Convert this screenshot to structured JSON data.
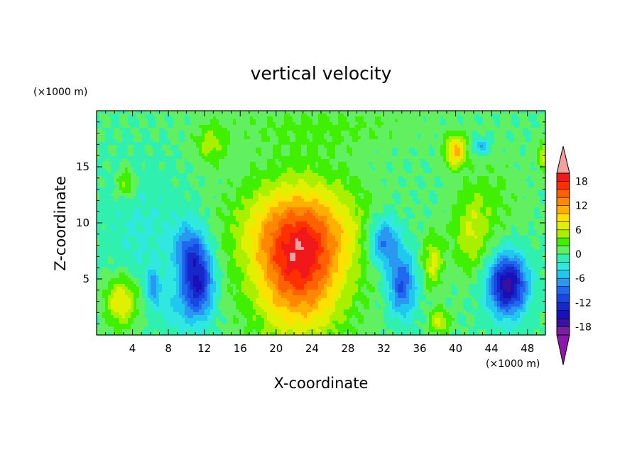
{
  "chart_data": {
    "type": "heatmap",
    "title": "vertical velocity",
    "xlabel": "X-coordinate",
    "ylabel": "Z-coordinate",
    "x_unit": "(×1000 m)",
    "y_unit": "(×1000 m)",
    "xlim": [
      0,
      50
    ],
    "ylim": [
      0,
      20
    ],
    "x_ticks": [
      4,
      8,
      12,
      16,
      20,
      24,
      28,
      32,
      36,
      40,
      44,
      48
    ],
    "y_ticks": [
      5,
      10,
      15
    ],
    "colorbar": {
      "levels": [
        -20,
        -18,
        -16,
        -14,
        -12,
        -10,
        -8,
        -6,
        -4,
        -2,
        0,
        2,
        4,
        6,
        8,
        10,
        12,
        14,
        16,
        18,
        20
      ],
      "tick_labels": [
        "18",
        "12",
        "6",
        "0",
        "-6",
        "-12",
        "-18"
      ],
      "tick_values": [
        18,
        12,
        6,
        0,
        -6,
        -12,
        -18
      ],
      "colors": [
        "#7a1fa0",
        "#3a10a0",
        "#1a10b8",
        "#1828c8",
        "#1848e0",
        "#2068f0",
        "#2a98f0",
        "#20c8f0",
        "#30e8e0",
        "#30f0b0",
        "#60f060",
        "#40f000",
        "#a8f000",
        "#e0f000",
        "#ffe000",
        "#ffb000",
        "#ff8800",
        "#ff6000",
        "#ff3000",
        "#f01818"
      ],
      "under_color": "#8a18a8",
      "over_color": "#f4a0a0"
    },
    "features": [
      {
        "x": 22.7,
        "z": 6.3,
        "w": 0.9,
        "sx": 4.2,
        "sz": 4.3
      },
      {
        "x": 22.5,
        "z": 9.5,
        "w": 0.25,
        "sx": 5.0,
        "sz": 3.0
      },
      {
        "x": 11.3,
        "z": 4.6,
        "w": -0.72,
        "sx": 1.3,
        "sz": 2.3
      },
      {
        "x": 10.3,
        "z": 7.8,
        "w": -0.35,
        "sx": 1.3,
        "sz": 1.8
      },
      {
        "x": 34.0,
        "z": 4.5,
        "w": -0.55,
        "sx": 1.1,
        "sz": 2.0
      },
      {
        "x": 32.0,
        "z": 8.3,
        "w": -0.5,
        "sx": 1.2,
        "sz": 1.6
      },
      {
        "x": 45.8,
        "z": 4.5,
        "w": -0.9,
        "sx": 1.5,
        "sz": 1.9
      },
      {
        "x": 6.3,
        "z": 4.3,
        "w": -0.38,
        "sx": 0.5,
        "sz": 1.0
      },
      {
        "x": 2.8,
        "z": 3.0,
        "w": 0.45,
        "sx": 1.3,
        "sz": 1.6
      },
      {
        "x": 3.3,
        "z": 13.5,
        "w": 0.28,
        "sx": 0.7,
        "sz": 0.9
      },
      {
        "x": 12.7,
        "z": 17.0,
        "w": 0.25,
        "sx": 1.2,
        "sz": 1.2
      },
      {
        "x": 40.0,
        "z": 16.4,
        "w": 0.55,
        "sx": 0.8,
        "sz": 1.0
      },
      {
        "x": 42.8,
        "z": 16.9,
        "w": -0.35,
        "sx": 0.7,
        "sz": 0.5
      },
      {
        "x": 37.5,
        "z": 6.5,
        "w": 0.35,
        "sx": 0.8,
        "sz": 1.6
      },
      {
        "x": 38.2,
        "z": 1.2,
        "w": 0.35,
        "sx": 0.8,
        "sz": 0.8
      },
      {
        "x": 41.7,
        "z": 9.0,
        "w": 0.28,
        "sx": 1.5,
        "sz": 2.4
      },
      {
        "x": 49.8,
        "z": 16.0,
        "w": 0.35,
        "sx": 0.5,
        "sz": 0.9
      },
      {
        "x": 27.5,
        "z": 5.0,
        "w": -0.12,
        "sx": 2.5,
        "sz": 3.0
      },
      {
        "x": 17.5,
        "z": 5.0,
        "w": -0.1,
        "sx": 2.0,
        "sz": 3.0
      },
      {
        "x": 25.0,
        "z": 18.5,
        "w": 0.12,
        "sx": 8.0,
        "sz": 1.5
      },
      {
        "x": 5.0,
        "z": 9.0,
        "w": -0.12,
        "sx": 3.0,
        "sz": 4.0
      },
      {
        "x": 44.0,
        "z": 12.0,
        "w": 0.12,
        "sx": 2.5,
        "sz": 3.0
      },
      {
        "x": 8.5,
        "z": 2.5,
        "w": -0.15,
        "sx": 1.5,
        "sz": 1.5
      }
    ]
  }
}
